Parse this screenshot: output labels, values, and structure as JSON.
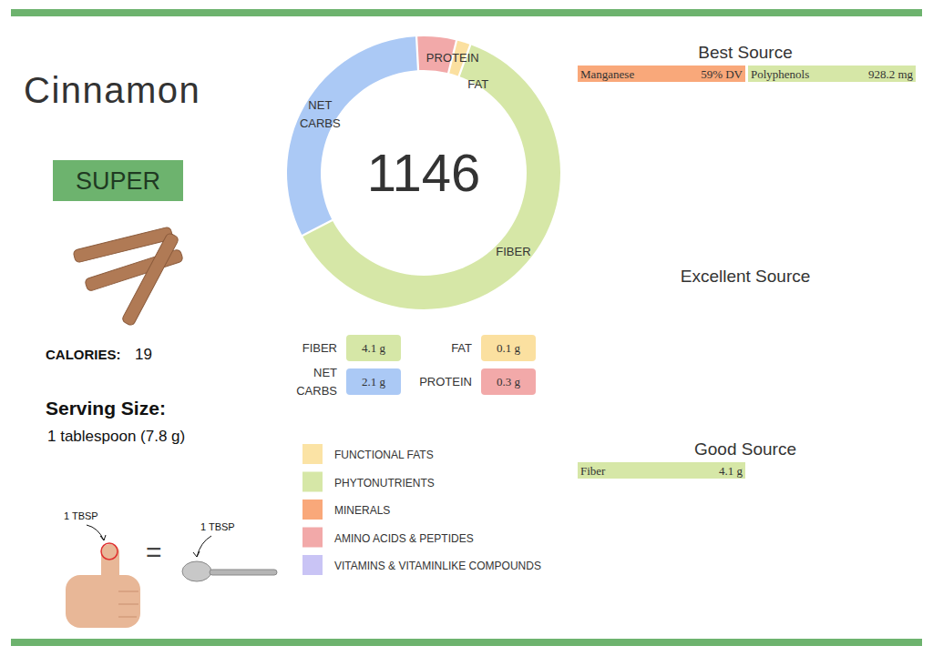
{
  "header": {
    "title": "Cinnamon",
    "badge": "SUPER"
  },
  "calories": {
    "label": "CALORIES:",
    "value": 19
  },
  "serving": {
    "label": "Serving Size:",
    "text": "1 tablespoon (7.8 g)",
    "hand_label": "1 TBSP",
    "equals": "=",
    "spoon_label": "1 TBSP"
  },
  "score": 1146,
  "chart_data": {
    "type": "donut",
    "categories": [
      "FIBER",
      "NET CARBS",
      "PROTEIN",
      "FAT"
    ],
    "values": [
      4.1,
      2.1,
      0.3,
      0.1
    ],
    "value_labels": [
      "4.1 g",
      "2.1 g",
      "0.3 g",
      "0.1 g"
    ],
    "colors": [
      "#d6e7a7",
      "#abc9f5",
      "#f2a9a9",
      "#fbe0a0"
    ]
  },
  "legend_key": [
    {
      "label": "FUNCTIONAL FATS",
      "color": "#fbe3a5"
    },
    {
      "label": "PHYTONUTRIENTS",
      "color": "#d6e7a7"
    },
    {
      "label": "MINERALS",
      "color": "#f9a87a"
    },
    {
      "label": "AMINO ACIDS & PEPTIDES",
      "color": "#f2a9a9"
    },
    {
      "label": "VITAMINS & VITAMINLIKE COMPOUNDS",
      "color": "#c9c4f5"
    }
  ],
  "sources": [
    {
      "title": "Best Source",
      "items": [
        {
          "name": "Manganese",
          "value_label": "59% DV",
          "color": "#f9a87a"
        },
        {
          "name": "Polyphenols",
          "value_label": "928.2 mg",
          "color": "#d6e7a7"
        }
      ]
    },
    {
      "title": "Excellent Source",
      "items": []
    },
    {
      "title": "Good Source",
      "items": [
        {
          "name": "Fiber",
          "value_label": "4.1 g",
          "color": "#d6e7a7"
        }
      ]
    }
  ]
}
